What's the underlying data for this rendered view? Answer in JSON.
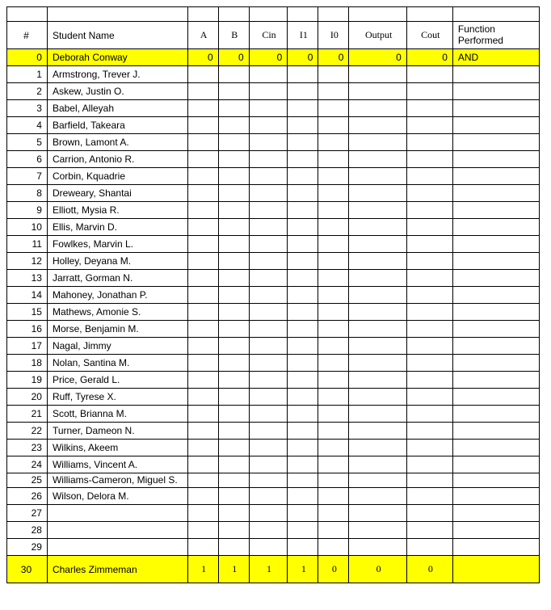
{
  "table": {
    "headers": {
      "num": "#",
      "name": "Student Name",
      "A": "A",
      "B": "B",
      "Cin": "Cin",
      "I1": "I1",
      "I0": "I0",
      "Output": "Output",
      "Cout": "Cout",
      "Func": "Function Performed"
    },
    "rows": [
      {
        "num": "0",
        "name": "Deborah Conway",
        "A": "0",
        "B": "0",
        "Cin": "0",
        "I1": "0",
        "I0": "0",
        "Output": "0",
        "Cout": "0",
        "Func": "AND",
        "highlight": true
      },
      {
        "num": "1",
        "name": "Armstrong, Trever J."
      },
      {
        "num": "2",
        "name": "Askew, Justin O."
      },
      {
        "num": "3",
        "name": "Babel, Alleyah"
      },
      {
        "num": "4",
        "name": "Barfield, Takeara"
      },
      {
        "num": "5",
        "name": "Brown, Lamont A."
      },
      {
        "num": "6",
        "name": "Carrion, Antonio R."
      },
      {
        "num": "7",
        "name": "Corbin, Kquadrie"
      },
      {
        "num": "8",
        "name": "Dreweary, Shantai"
      },
      {
        "num": "9",
        "name": "Elliott, Mysia R."
      },
      {
        "num": "10",
        "name": "Ellis, Marvin D."
      },
      {
        "num": "11",
        "name": "Fowlkes, Marvin L."
      },
      {
        "num": "12",
        "name": "Holley, Deyana M."
      },
      {
        "num": "13",
        "name": "Jarratt, Gorman N."
      },
      {
        "num": "14",
        "name": "Mahoney, Jonathan P."
      },
      {
        "num": "15",
        "name": "Mathews, Amonie S."
      },
      {
        "num": "16",
        "name": "Morse, Benjamin M."
      },
      {
        "num": "17",
        "name": "Nagal, Jimmy"
      },
      {
        "num": "18",
        "name": "Nolan, Santina M."
      },
      {
        "num": "19",
        "name": "Price, Gerald L."
      },
      {
        "num": "20",
        "name": "Ruff, Tyrese X."
      },
      {
        "num": "21",
        "name": "Scott, Brianna M."
      },
      {
        "num": "22",
        "name": "Turner, Dameon N."
      },
      {
        "num": "23",
        "name": "Wilkins, Akeem"
      },
      {
        "num": "24",
        "name": "Williams, Vincent A."
      },
      {
        "num": "25",
        "name": "Williams-Cameron, Miguel S.",
        "tall": true
      },
      {
        "num": "26",
        "name": "Wilson, Delora M."
      },
      {
        "num": "27",
        "name": ""
      },
      {
        "num": "28",
        "name": ""
      },
      {
        "num": "29",
        "name": ""
      },
      {
        "num": "30",
        "name": "Charles Zimmeman",
        "A": "1",
        "B": "1",
        "Cin": "1",
        "I1": "1",
        "I0": "0",
        "Output": "0",
        "Cout": "0",
        "Func": "",
        "highlight": true,
        "header_style": true
      }
    ],
    "colors": {
      "highlight": "#ffff00",
      "border": "#000000",
      "background": "#ffffff",
      "text": "#000000"
    }
  }
}
